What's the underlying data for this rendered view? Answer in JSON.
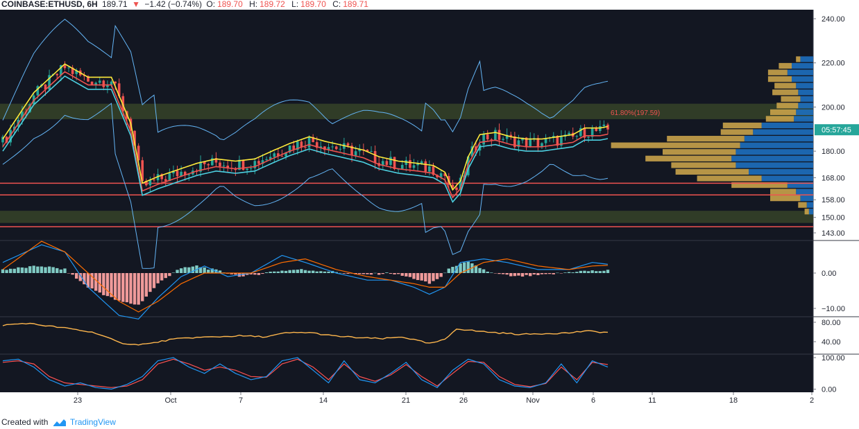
{
  "header": {
    "symbol": "COINBASE:ETHUSD, 6H",
    "last": "189.71",
    "arrow": "▼",
    "change": "−1.42 (−0.74%)",
    "o_label": "O:",
    "o_value": "189.70",
    "h_label": "H:",
    "h_value": "189.72",
    "l_label": "L:",
    "l_value": "189.70",
    "c_label": "C:",
    "c_value": "189.71"
  },
  "footer": {
    "created_with": "Created with",
    "brand": "TradingView"
  },
  "colors": {
    "background": "#131722",
    "grid": "#1e2230",
    "up": "#26a69a",
    "down": "#ef5350",
    "ema_fast": "#ffeb3b",
    "ema_mid": "#4dd0e1",
    "ema_slow": "#ef5350",
    "bollinger": "#64b5f6",
    "macd": "#2196f3",
    "signal": "#ff6d00",
    "rsi": "#ffb74d",
    "stoch_k": "#2196f3",
    "stoch_d": "#ff5252",
    "vp_up": "#1e6fbf",
    "vp_down": "#c9a24a",
    "zone": "#3b4a2a",
    "fib": "#ef5350"
  },
  "chart_data": {
    "type": "candlestick",
    "x_ticks": [
      "23",
      "Oct",
      "7",
      "14",
      "21",
      "26",
      "Nov",
      "6",
      "11",
      "18",
      "2"
    ],
    "price_panel": {
      "y_ticks": [
        "240.00",
        "220.00",
        "200.00",
        "180.00",
        "168.00",
        "158.00",
        "150.00",
        "143.00"
      ],
      "current_price_label": "05:57:45",
      "current_price": 189.71,
      "fib_label": "61.80%(197.59)",
      "fib_level": 197.59,
      "horizontal_lines": [
        165.5,
        160.2,
        145.8
      ],
      "zones": [
        [
          194.5,
          201.5
        ],
        [
          147.5,
          153
        ]
      ],
      "close_path": [
        [
          0,
          184
        ],
        [
          8,
          205
        ],
        [
          16,
          218
        ],
        [
          22,
          212
        ],
        [
          28,
          212
        ],
        [
          33,
          191
        ],
        [
          36,
          164
        ],
        [
          40,
          167
        ],
        [
          45,
          170
        ],
        [
          50,
          173
        ],
        [
          55,
          175
        ],
        [
          60,
          174
        ],
        [
          65,
          175
        ],
        [
          70,
          179
        ],
        [
          74,
          182
        ],
        [
          79,
          185
        ],
        [
          83,
          183
        ],
        [
          88,
          181
        ],
        [
          93,
          179
        ],
        [
          97,
          176
        ],
        [
          102,
          174
        ],
        [
          107,
          173
        ],
        [
          111,
          172
        ],
        [
          114,
          169
        ],
        [
          116,
          161
        ],
        [
          118,
          165
        ],
        [
          120,
          176
        ],
        [
          123,
          186
        ],
        [
          127,
          187
        ],
        [
          131,
          185
        ],
        [
          135,
          184
        ],
        [
          139,
          184
        ],
        [
          143,
          185
        ],
        [
          147,
          186
        ],
        [
          150,
          189
        ],
        [
          154,
          189
        ],
        [
          156,
          189.7
        ]
      ],
      "volume_profile": [
        {
          "price": 221.5,
          "up": 6,
          "down": 2
        },
        {
          "price": 218.5,
          "up": 10,
          "down": 6
        },
        {
          "price": 215.5,
          "up": 12,
          "down": 9
        },
        {
          "price": 212.5,
          "up": 10,
          "down": 11
        },
        {
          "price": 209.5,
          "up": 8,
          "down": 10
        },
        {
          "price": 206.5,
          "up": 7,
          "down": 12
        },
        {
          "price": 203.5,
          "up": 6,
          "down": 9
        },
        {
          "price": 200.5,
          "up": 7,
          "down": 10
        },
        {
          "price": 197.5,
          "up": 8,
          "down": 12
        },
        {
          "price": 194.5,
          "up": 9,
          "down": 13
        },
        {
          "price": 191.5,
          "up": 24,
          "down": 18
        },
        {
          "price": 188.5,
          "up": 28,
          "down": 15
        },
        {
          "price": 185.5,
          "up": 32,
          "down": 36
        },
        {
          "price": 182.5,
          "up": 34,
          "down": 60
        },
        {
          "price": 179.5,
          "up": 36,
          "down": 34
        },
        {
          "price": 176.5,
          "up": 38,
          "down": 40
        },
        {
          "price": 173.5,
          "up": 36,
          "down": 30
        },
        {
          "price": 170.5,
          "up": 30,
          "down": 34
        },
        {
          "price": 167.5,
          "up": 24,
          "down": 30
        },
        {
          "price": 164.5,
          "up": 12,
          "down": 26
        },
        {
          "price": 161.5,
          "up": 8,
          "down": 12
        },
        {
          "price": 158.5,
          "up": 6,
          "down": 14
        },
        {
          "price": 155.5,
          "up": 3,
          "down": 4
        },
        {
          "price": 152.5,
          "up": 2,
          "down": 2
        }
      ]
    },
    "macd_panel": {
      "y_ticks": [
        "0.00",
        "−10.00"
      ],
      "hist_path": [
        [
          0,
          1
        ],
        [
          10,
          2
        ],
        [
          16,
          1
        ],
        [
          22,
          -4
        ],
        [
          30,
          -8
        ],
        [
          35,
          -9
        ],
        [
          40,
          -3
        ],
        [
          45,
          1
        ],
        [
          50,
          2
        ],
        [
          56,
          0.5
        ],
        [
          62,
          -1
        ],
        [
          70,
          0.5
        ],
        [
          76,
          1
        ],
        [
          84,
          0.5
        ],
        [
          92,
          -0.5
        ],
        [
          100,
          0
        ],
        [
          106,
          -1.5
        ],
        [
          110,
          -3
        ],
        [
          113,
          -1
        ],
        [
          116,
          2
        ],
        [
          120,
          3
        ],
        [
          126,
          0
        ],
        [
          132,
          -1
        ],
        [
          140,
          -0.5
        ],
        [
          148,
          0.5
        ],
        [
          156,
          0.7
        ]
      ],
      "macd_path": [
        [
          0,
          3
        ],
        [
          10,
          8
        ],
        [
          16,
          6
        ],
        [
          22,
          -4
        ],
        [
          30,
          -12
        ],
        [
          35,
          -13
        ],
        [
          40,
          -7
        ],
        [
          46,
          -1
        ],
        [
          52,
          2
        ],
        [
          58,
          -1
        ],
        [
          64,
          0
        ],
        [
          72,
          5
        ],
        [
          78,
          3
        ],
        [
          86,
          0
        ],
        [
          94,
          -2
        ],
        [
          100,
          -2
        ],
        [
          106,
          -4
        ],
        [
          110,
          -6
        ],
        [
          114,
          -4
        ],
        [
          118,
          3
        ],
        [
          124,
          4
        ],
        [
          130,
          3
        ],
        [
          138,
          1
        ],
        [
          146,
          1
        ],
        [
          152,
          3
        ],
        [
          156,
          2.5
        ]
      ],
      "signal_path": [
        [
          0,
          1
        ],
        [
          10,
          9
        ],
        [
          16,
          6
        ],
        [
          22,
          0
        ],
        [
          30,
          -8
        ],
        [
          35,
          -11
        ],
        [
          40,
          -8
        ],
        [
          46,
          -3
        ],
        [
          52,
          0
        ],
        [
          58,
          0
        ],
        [
          64,
          0
        ],
        [
          72,
          3
        ],
        [
          78,
          4
        ],
        [
          86,
          1
        ],
        [
          94,
          -1
        ],
        [
          100,
          -2
        ],
        [
          106,
          -3
        ],
        [
          110,
          -4
        ],
        [
          114,
          -4
        ],
        [
          118,
          0
        ],
        [
          124,
          3
        ],
        [
          130,
          4
        ],
        [
          138,
          2
        ],
        [
          146,
          1
        ],
        [
          152,
          2
        ],
        [
          156,
          2.2
        ]
      ]
    },
    "rsi_panel": {
      "y_ticks": [
        "80.00",
        "40.00"
      ],
      "rsi_path": [
        [
          0,
          74
        ],
        [
          6,
          78
        ],
        [
          12,
          72
        ],
        [
          18,
          66
        ],
        [
          24,
          58
        ],
        [
          30,
          38
        ],
        [
          34,
          34
        ],
        [
          38,
          36
        ],
        [
          43,
          44
        ],
        [
          48,
          48
        ],
        [
          55,
          50
        ],
        [
          61,
          52
        ],
        [
          68,
          50
        ],
        [
          73,
          58
        ],
        [
          79,
          59
        ],
        [
          85,
          52
        ],
        [
          92,
          48
        ],
        [
          98,
          46
        ],
        [
          103,
          50
        ],
        [
          106,
          44
        ],
        [
          110,
          36
        ],
        [
          114,
          44
        ],
        [
          117,
          67
        ],
        [
          122,
          62
        ],
        [
          128,
          58
        ],
        [
          134,
          55
        ],
        [
          140,
          57
        ],
        [
          146,
          58
        ],
        [
          150,
          62
        ],
        [
          154,
          60
        ],
        [
          156,
          59
        ]
      ]
    },
    "stoch_panel": {
      "y_ticks": [
        "100.00",
        "0.00"
      ],
      "k_path": [
        [
          0,
          90
        ],
        [
          4,
          95
        ],
        [
          8,
          70
        ],
        [
          12,
          30
        ],
        [
          16,
          10
        ],
        [
          20,
          20
        ],
        [
          24,
          5
        ],
        [
          28,
          0
        ],
        [
          32,
          15
        ],
        [
          36,
          40
        ],
        [
          40,
          90
        ],
        [
          44,
          100
        ],
        [
          48,
          70
        ],
        [
          52,
          50
        ],
        [
          56,
          80
        ],
        [
          60,
          50
        ],
        [
          64,
          30
        ],
        [
          68,
          40
        ],
        [
          72,
          90
        ],
        [
          76,
          100
        ],
        [
          80,
          60
        ],
        [
          84,
          20
        ],
        [
          88,
          90
        ],
        [
          92,
          30
        ],
        [
          96,
          20
        ],
        [
          100,
          50
        ],
        [
          104,
          85
        ],
        [
          108,
          30
        ],
        [
          112,
          5
        ],
        [
          116,
          60
        ],
        [
          120,
          95
        ],
        [
          124,
          80
        ],
        [
          128,
          30
        ],
        [
          132,
          10
        ],
        [
          136,
          5
        ],
        [
          140,
          20
        ],
        [
          144,
          80
        ],
        [
          148,
          20
        ],
        [
          152,
          90
        ],
        [
          156,
          70
        ]
      ],
      "d_path": [
        [
          0,
          85
        ],
        [
          4,
          90
        ],
        [
          8,
          80
        ],
        [
          12,
          40
        ],
        [
          16,
          20
        ],
        [
          20,
          15
        ],
        [
          24,
          10
        ],
        [
          28,
          5
        ],
        [
          32,
          10
        ],
        [
          36,
          30
        ],
        [
          40,
          80
        ],
        [
          44,
          95
        ],
        [
          48,
          80
        ],
        [
          52,
          60
        ],
        [
          56,
          70
        ],
        [
          60,
          60
        ],
        [
          64,
          40
        ],
        [
          68,
          38
        ],
        [
          72,
          80
        ],
        [
          76,
          95
        ],
        [
          80,
          70
        ],
        [
          84,
          30
        ],
        [
          88,
          80
        ],
        [
          92,
          40
        ],
        [
          96,
          25
        ],
        [
          100,
          45
        ],
        [
          104,
          78
        ],
        [
          108,
          40
        ],
        [
          112,
          10
        ],
        [
          116,
          50
        ],
        [
          120,
          88
        ],
        [
          124,
          85
        ],
        [
          128,
          40
        ],
        [
          132,
          15
        ],
        [
          136,
          8
        ],
        [
          140,
          18
        ],
        [
          144,
          70
        ],
        [
          148,
          30
        ],
        [
          152,
          85
        ],
        [
          156,
          78
        ]
      ]
    }
  }
}
